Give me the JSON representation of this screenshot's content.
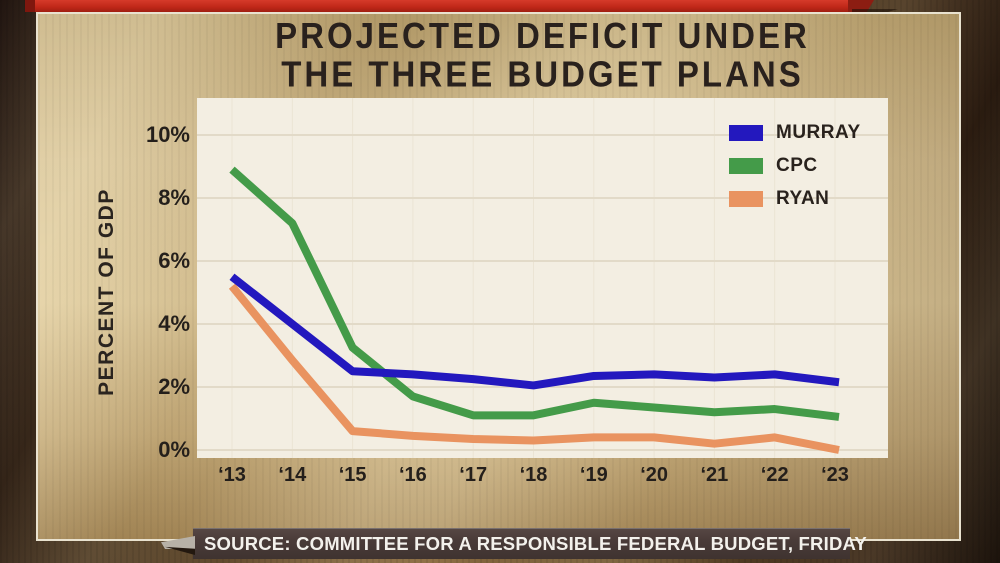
{
  "banner": {
    "color": "#bf2718"
  },
  "title": {
    "line1": "PROJECTED DEFICIT UNDER",
    "line2": "THE THREE BUDGET PLANS"
  },
  "source": {
    "label": "SOURCE: COMMITTEE FOR A RESPONSIBLE FEDERAL BUDGET, FRIDAY"
  },
  "chart_data": {
    "type": "line",
    "title": "PROJECTED DEFICIT UNDER THE THREE BUDGET PLANS",
    "ylabel": "PERCENT OF GDP",
    "xlabel": "",
    "units": "percent of GDP",
    "categories": [
      "‘13",
      "‘14",
      "‘15",
      "‘16",
      "‘17",
      "‘18",
      "‘19",
      "‘20",
      "‘21",
      "‘22",
      "‘23"
    ],
    "series": [
      {
        "name": "MURRAY",
        "color": "#2318be",
        "values": [
          5.5,
          4.0,
          2.5,
          2.4,
          2.25,
          2.05,
          2.35,
          2.4,
          2.3,
          2.4,
          2.15
        ]
      },
      {
        "name": "CPC",
        "color": "#449b49",
        "values": [
          8.9,
          7.2,
          3.25,
          1.7,
          1.1,
          1.1,
          1.5,
          1.35,
          1.2,
          1.3,
          1.05
        ]
      },
      {
        "name": "RYAN",
        "color": "#e99360",
        "values": [
          5.2,
          2.85,
          0.6,
          0.45,
          0.35,
          0.3,
          0.4,
          0.4,
          0.2,
          0.4,
          0.0
        ]
      }
    ],
    "ylim": [
      0,
      10
    ],
    "yticks": [
      0,
      2,
      4,
      6,
      8,
      10
    ],
    "ytick_labels": [
      "0%",
      "2%",
      "4%",
      "6%",
      "8%",
      "10%"
    ],
    "grid": true,
    "legend_position": "top-right",
    "plot_background": "#f3eee2",
    "gridline_color": "#e2dac8"
  }
}
